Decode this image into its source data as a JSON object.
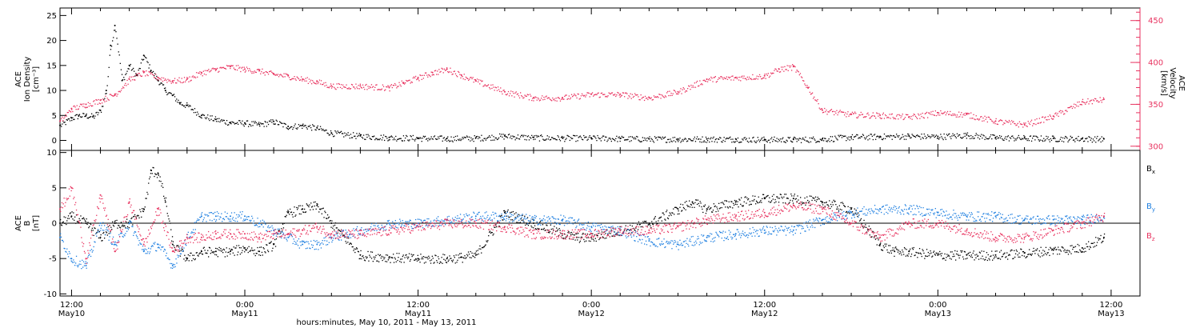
{
  "colors": {
    "black": "#000000",
    "pink": "#e8325f",
    "blue": "#1e7fe0"
  },
  "x_axis": {
    "title": "hours:minutes, May 10, 2011 - May 13, 2011",
    "ticks": [
      {
        "t": 0,
        "time": "12:00",
        "date": "May10"
      },
      {
        "t": 12,
        "time": "0:00",
        "date": "May11"
      },
      {
        "t": 24,
        "time": "12:00",
        "date": "May11"
      },
      {
        "t": 36,
        "time": "0:00",
        "date": "May12"
      },
      {
        "t": 48,
        "time": "12:00",
        "date": "May12"
      },
      {
        "t": 60,
        "time": "0:00",
        "date": "May13"
      },
      {
        "t": 72,
        "time": "12:00",
        "date": "May13"
      }
    ]
  },
  "chart_data": [
    {
      "type": "scatter",
      "panel": "top",
      "ylabel_left": [
        "ACE",
        "Ion Density",
        "[cm⁻³]"
      ],
      "ylabel_right": [
        "ACE",
        "Velocity",
        "[km/s]"
      ],
      "x_unit": "hours after May 10 12:00",
      "xlim": [
        -0.8,
        74
      ],
      "ylim_left": [
        -2,
        26.5
      ],
      "ylim_right": [
        295,
        465
      ],
      "yticks_left": [
        "0",
        "5",
        "10",
        "15",
        "20",
        "25"
      ],
      "yticks_right": [
        "300",
        "350",
        "400",
        "450"
      ],
      "series": [
        {
          "axis": "left",
          "color": "black",
          "x": [
            -0.8,
            0,
            0.5,
            1,
            1.5,
            2,
            2.4,
            2.7,
            3,
            3.5,
            4,
            4.5,
            5,
            5.5,
            6,
            6.5,
            7,
            7.5,
            8,
            9,
            10,
            11,
            12,
            13,
            14,
            15,
            16,
            17,
            18,
            20,
            22,
            24,
            26,
            28,
            30,
            32,
            34,
            36,
            38,
            40,
            42,
            44,
            46,
            48,
            50,
            52,
            54,
            56,
            58,
            60,
            62,
            64,
            66,
            68,
            70,
            71.5
          ],
          "y": [
            3,
            4.5,
            5,
            5,
            4.8,
            6,
            10,
            19,
            23,
            12,
            15,
            13,
            17,
            14,
            12,
            10,
            9,
            7.5,
            7,
            5,
            4.2,
            3.6,
            3.5,
            3.2,
            3.8,
            2.8,
            3.0,
            2.5,
            1.5,
            0.9,
            0.6,
            0.5,
            0.4,
            0.5,
            0.9,
            0.6,
            0.5,
            0.5,
            0.4,
            0.3,
            0.3,
            0.3,
            0.3,
            0.2,
            0.2,
            0.3,
            0.7,
            0.8,
            0.9,
            0.8,
            1.1,
            0.6,
            0.5,
            0.4,
            0.4,
            0.3
          ]
        },
        {
          "axis": "right",
          "color": "pink",
          "x": [
            -0.8,
            0,
            1,
            2,
            3,
            4,
            5,
            6,
            7,
            8,
            9,
            10,
            11,
            12,
            13,
            14,
            15,
            16,
            17,
            18,
            20,
            22,
            23,
            24,
            25,
            26,
            27,
            28,
            30,
            32,
            34,
            36,
            38,
            40,
            42,
            44,
            46,
            48,
            49,
            50,
            51,
            52,
            54,
            56,
            58,
            60,
            62,
            64,
            66,
            68,
            70,
            71.5
          ],
          "y": [
            330,
            345,
            350,
            355,
            362,
            380,
            388,
            382,
            378,
            380,
            388,
            392,
            395,
            392,
            390,
            386,
            384,
            380,
            377,
            372,
            372,
            370,
            376,
            382,
            388,
            392,
            385,
            378,
            365,
            358,
            358,
            362,
            362,
            358,
            365,
            380,
            382,
            384,
            392,
            395,
            370,
            343,
            338,
            337,
            335,
            340,
            338,
            330,
            326,
            336,
            353,
            356
          ]
        }
      ]
    },
    {
      "type": "scatter",
      "panel": "bottom",
      "ylabel_left": [
        "ACE",
        "B",
        "[nT]"
      ],
      "x_unit": "hours after May 10 12:00",
      "xlim": [
        -0.8,
        74
      ],
      "ylim": [
        -10.3,
        10.3
      ],
      "yticks": [
        "-10",
        "-5",
        "0",
        "5",
        "10"
      ],
      "legend": [
        "Bx",
        "By",
        "Bz"
      ],
      "legend_placement": "right",
      "series": [
        {
          "name": "Bx",
          "color": "black",
          "x": [
            -0.8,
            0,
            1,
            2,
            3,
            4,
            5,
            5.5,
            6,
            6.5,
            7,
            8,
            9,
            10,
            11,
            12,
            13,
            14,
            15,
            16,
            17,
            18,
            20,
            22,
            24,
            26,
            27,
            28,
            30,
            32,
            34,
            35,
            36,
            38,
            40,
            42,
            43,
            44,
            46,
            48,
            50,
            52,
            54,
            56,
            57,
            58,
            60,
            62,
            64,
            66,
            68,
            70,
            71.5
          ],
          "y": [
            0,
            1,
            0,
            -2,
            0,
            0,
            2,
            7.5,
            7,
            3,
            -3,
            -5,
            -4,
            -4,
            -4,
            -3.5,
            -4,
            -3,
            1.5,
            2,
            2.5,
            0,
            -4.5,
            -4.8,
            -5,
            -5,
            -4.8,
            -4.5,
            1.5,
            0,
            -1.5,
            -2,
            -2,
            -1,
            0,
            2,
            3,
            2,
            3,
            3.5,
            3.5,
            3.0,
            2.0,
            -3,
            -4,
            -4,
            -4.5,
            -4.5,
            -4.5,
            -4.2,
            -3.8,
            -3.5,
            -2
          ]
        },
        {
          "name": "By",
          "color": "blue",
          "x": [
            -0.8,
            0,
            1,
            2,
            3,
            4,
            5,
            6,
            7,
            8,
            9,
            10,
            11,
            12,
            13,
            14,
            15,
            16,
            17,
            18,
            20,
            22,
            24,
            26,
            28,
            30,
            32,
            34,
            36,
            38,
            40,
            42,
            44,
            46,
            48,
            50,
            52,
            54,
            56,
            58,
            60,
            62,
            64,
            66,
            68,
            70,
            71.5
          ],
          "y": [
            -2,
            -5,
            -6,
            0,
            -3,
            0,
            -4,
            -3,
            -6,
            -2,
            1,
            1,
            1,
            1,
            0,
            -1,
            -2,
            -3,
            -3,
            -2,
            -1,
            0,
            0,
            0.5,
            1,
            1,
            0.5,
            0.5,
            -0.5,
            -1,
            -2.5,
            -3,
            -2,
            -1.5,
            -1,
            -1,
            0.5,
            1.5,
            2,
            2,
            1.5,
            1,
            1,
            0.5,
            0.5,
            0.5,
            1
          ]
        },
        {
          "name": "Bz",
          "color": "pink",
          "x": [
            -0.8,
            0,
            1,
            2,
            3,
            4,
            5,
            6,
            7,
            8,
            9,
            10,
            11,
            12,
            13,
            14,
            15,
            16,
            17,
            18,
            20,
            22,
            24,
            26,
            28,
            30,
            32,
            34,
            36,
            38,
            40,
            42,
            44,
            46,
            48,
            50,
            52,
            54,
            56,
            58,
            60,
            62,
            64,
            66,
            68,
            70,
            71.5
          ],
          "y": [
            2,
            5,
            -5,
            4,
            -4,
            3,
            -3,
            2,
            -4,
            -2,
            -2,
            -1.5,
            -1.5,
            -1.5,
            -2,
            -1.5,
            -1.5,
            -1,
            -0.5,
            -1.5,
            -1.5,
            -1,
            -0.5,
            0,
            0,
            -0.5,
            -1.5,
            -1.5,
            -1.5,
            -1,
            -1,
            -0.5,
            0.5,
            1,
            1.5,
            2.5,
            2,
            0,
            -2,
            0,
            0,
            -1,
            -2,
            -2,
            -1,
            0,
            1
          ]
        }
      ]
    }
  ]
}
